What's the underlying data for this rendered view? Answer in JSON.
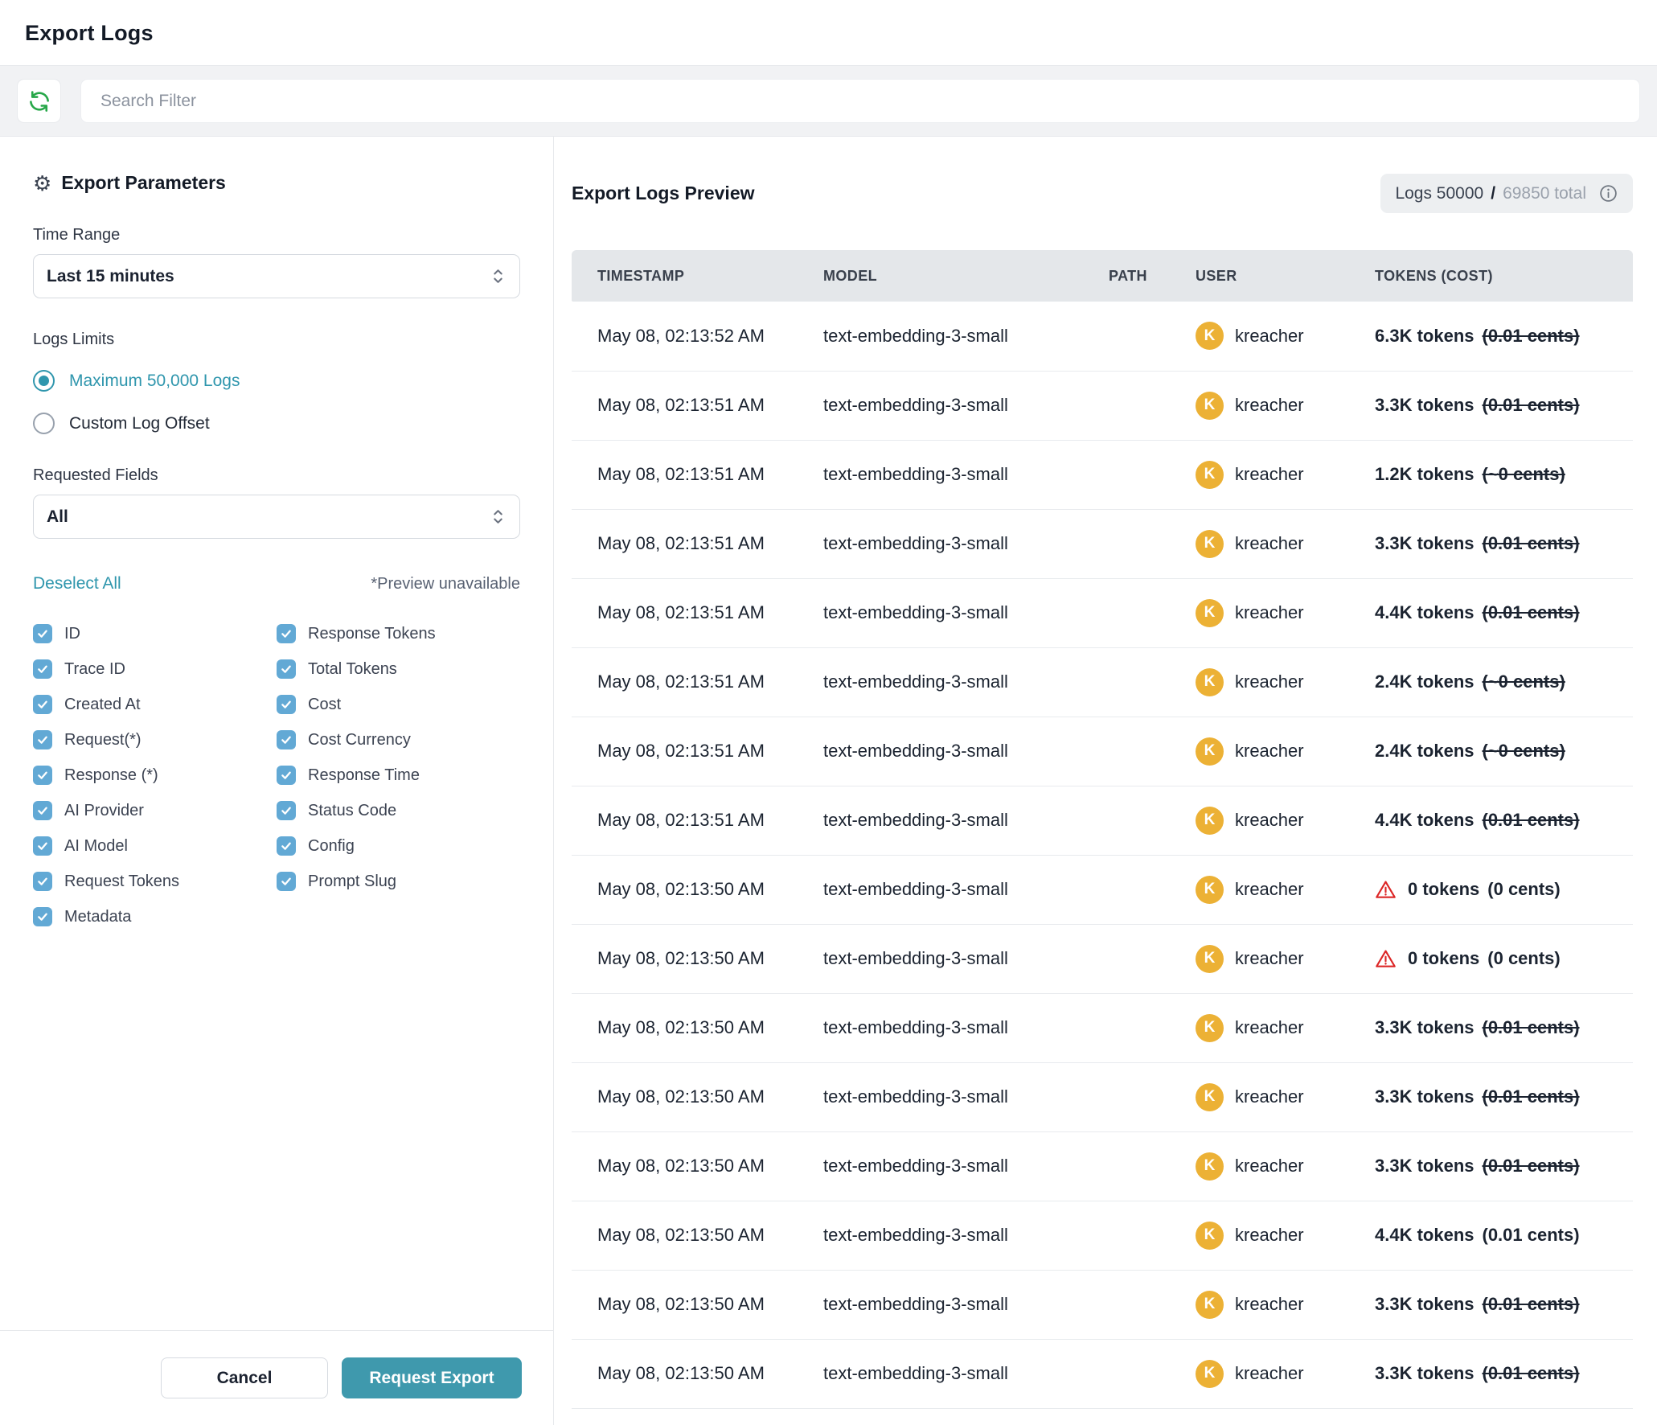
{
  "header": {
    "title": "Export Logs"
  },
  "search": {
    "placeholder": "Search Filter"
  },
  "icons": {
    "gear": "⚙"
  },
  "colors": {
    "accent": "#2f96ad",
    "button_bg": "#3f99ad",
    "checkbox_blue": "#62a9d5",
    "avatar_bg": "#ecb135",
    "warning_red": "#dc2626",
    "refresh_green": "#27a749",
    "table_header_bg": "#e4e7ea",
    "strip_bg": "#f1f2f4"
  },
  "params": {
    "title": "Export Parameters",
    "time_range": {
      "label": "Time Range",
      "value": "Last 15 minutes"
    },
    "logs_limits": {
      "label": "Logs Limits",
      "options": [
        {
          "label": "Maximum 50,000 Logs",
          "selected": true
        },
        {
          "label": "Custom Log Offset",
          "selected": false
        }
      ]
    },
    "requested_fields": {
      "label": "Requested Fields",
      "value": "All"
    },
    "deselect_all_label": "Deselect All",
    "preview_unavailable_note": "*Preview unavailable",
    "fields_left": [
      "ID",
      "Trace ID",
      "Created At",
      "Request(*)",
      "Response (*)",
      "AI Provider",
      "AI Model",
      "Request Tokens",
      "Metadata"
    ],
    "fields_right": [
      "Response Tokens",
      "Total Tokens",
      "Cost",
      "Cost Currency",
      "Response Time",
      "Status Code",
      "Config",
      "Prompt Slug"
    ],
    "cancel_label": "Cancel",
    "request_export_label": "Request Export"
  },
  "preview": {
    "title": "Export Logs Preview",
    "badge": {
      "logs": "Logs 50000",
      "sep": "/",
      "total": "69850 total"
    },
    "columns": [
      "TIMESTAMP",
      "MODEL",
      "PATH",
      "USER",
      "TOKENS (COST)"
    ],
    "rows": [
      {
        "timestamp": "May 08, 02:13:52 AM",
        "model": "text-embedding-3-small",
        "path": "",
        "avatar": "K",
        "user": "kreacher",
        "tokens": "6.3K tokens",
        "cost": "(0.01 cents)",
        "cost_struck": true,
        "warning": false
      },
      {
        "timestamp": "May 08, 02:13:51 AM",
        "model": "text-embedding-3-small",
        "path": "",
        "avatar": "K",
        "user": "kreacher",
        "tokens": "3.3K tokens",
        "cost": "(0.01 cents)",
        "cost_struck": true,
        "warning": false
      },
      {
        "timestamp": "May 08, 02:13:51 AM",
        "model": "text-embedding-3-small",
        "path": "",
        "avatar": "K",
        "user": "kreacher",
        "tokens": "1.2K tokens",
        "cost": "(~0 cents)",
        "cost_struck": true,
        "warning": false
      },
      {
        "timestamp": "May 08, 02:13:51 AM",
        "model": "text-embedding-3-small",
        "path": "",
        "avatar": "K",
        "user": "kreacher",
        "tokens": "3.3K tokens",
        "cost": "(0.01 cents)",
        "cost_struck": true,
        "warning": false
      },
      {
        "timestamp": "May 08, 02:13:51 AM",
        "model": "text-embedding-3-small",
        "path": "",
        "avatar": "K",
        "user": "kreacher",
        "tokens": "4.4K tokens",
        "cost": "(0.01 cents)",
        "cost_struck": true,
        "warning": false
      },
      {
        "timestamp": "May 08, 02:13:51 AM",
        "model": "text-embedding-3-small",
        "path": "",
        "avatar": "K",
        "user": "kreacher",
        "tokens": "2.4K tokens",
        "cost": "(~0 cents)",
        "cost_struck": true,
        "warning": false
      },
      {
        "timestamp": "May 08, 02:13:51 AM",
        "model": "text-embedding-3-small",
        "path": "",
        "avatar": "K",
        "user": "kreacher",
        "tokens": "2.4K tokens",
        "cost": "(~0 cents)",
        "cost_struck": true,
        "warning": false
      },
      {
        "timestamp": "May 08, 02:13:51 AM",
        "model": "text-embedding-3-small",
        "path": "",
        "avatar": "K",
        "user": "kreacher",
        "tokens": "4.4K tokens",
        "cost": "(0.01 cents)",
        "cost_struck": true,
        "warning": false
      },
      {
        "timestamp": "May 08, 02:13:50 AM",
        "model": "text-embedding-3-small",
        "path": "",
        "avatar": "K",
        "user": "kreacher",
        "tokens": "0 tokens",
        "cost": "(0 cents)",
        "cost_struck": false,
        "warning": true
      },
      {
        "timestamp": "May 08, 02:13:50 AM",
        "model": "text-embedding-3-small",
        "path": "",
        "avatar": "K",
        "user": "kreacher",
        "tokens": "0 tokens",
        "cost": "(0 cents)",
        "cost_struck": false,
        "warning": true
      },
      {
        "timestamp": "May 08, 02:13:50 AM",
        "model": "text-embedding-3-small",
        "path": "",
        "avatar": "K",
        "user": "kreacher",
        "tokens": "3.3K tokens",
        "cost": "(0.01 cents)",
        "cost_struck": true,
        "warning": false
      },
      {
        "timestamp": "May 08, 02:13:50 AM",
        "model": "text-embedding-3-small",
        "path": "",
        "avatar": "K",
        "user": "kreacher",
        "tokens": "3.3K tokens",
        "cost": "(0.01 cents)",
        "cost_struck": true,
        "warning": false
      },
      {
        "timestamp": "May 08, 02:13:50 AM",
        "model": "text-embedding-3-small",
        "path": "",
        "avatar": "K",
        "user": "kreacher",
        "tokens": "3.3K tokens",
        "cost": "(0.01 cents)",
        "cost_struck": true,
        "warning": false
      },
      {
        "timestamp": "May 08, 02:13:50 AM",
        "model": "text-embedding-3-small",
        "path": "",
        "avatar": "K",
        "user": "kreacher",
        "tokens": "4.4K tokens",
        "cost": "(0.01 cents)",
        "cost_struck": false,
        "warning": false
      },
      {
        "timestamp": "May 08, 02:13:50 AM",
        "model": "text-embedding-3-small",
        "path": "",
        "avatar": "K",
        "user": "kreacher",
        "tokens": "3.3K tokens",
        "cost": "(0.01 cents)",
        "cost_struck": true,
        "warning": false
      },
      {
        "timestamp": "May 08, 02:13:50 AM",
        "model": "text-embedding-3-small",
        "path": "",
        "avatar": "K",
        "user": "kreacher",
        "tokens": "3.3K tokens",
        "cost": "(0.01 cents)",
        "cost_struck": true,
        "warning": false
      }
    ]
  }
}
